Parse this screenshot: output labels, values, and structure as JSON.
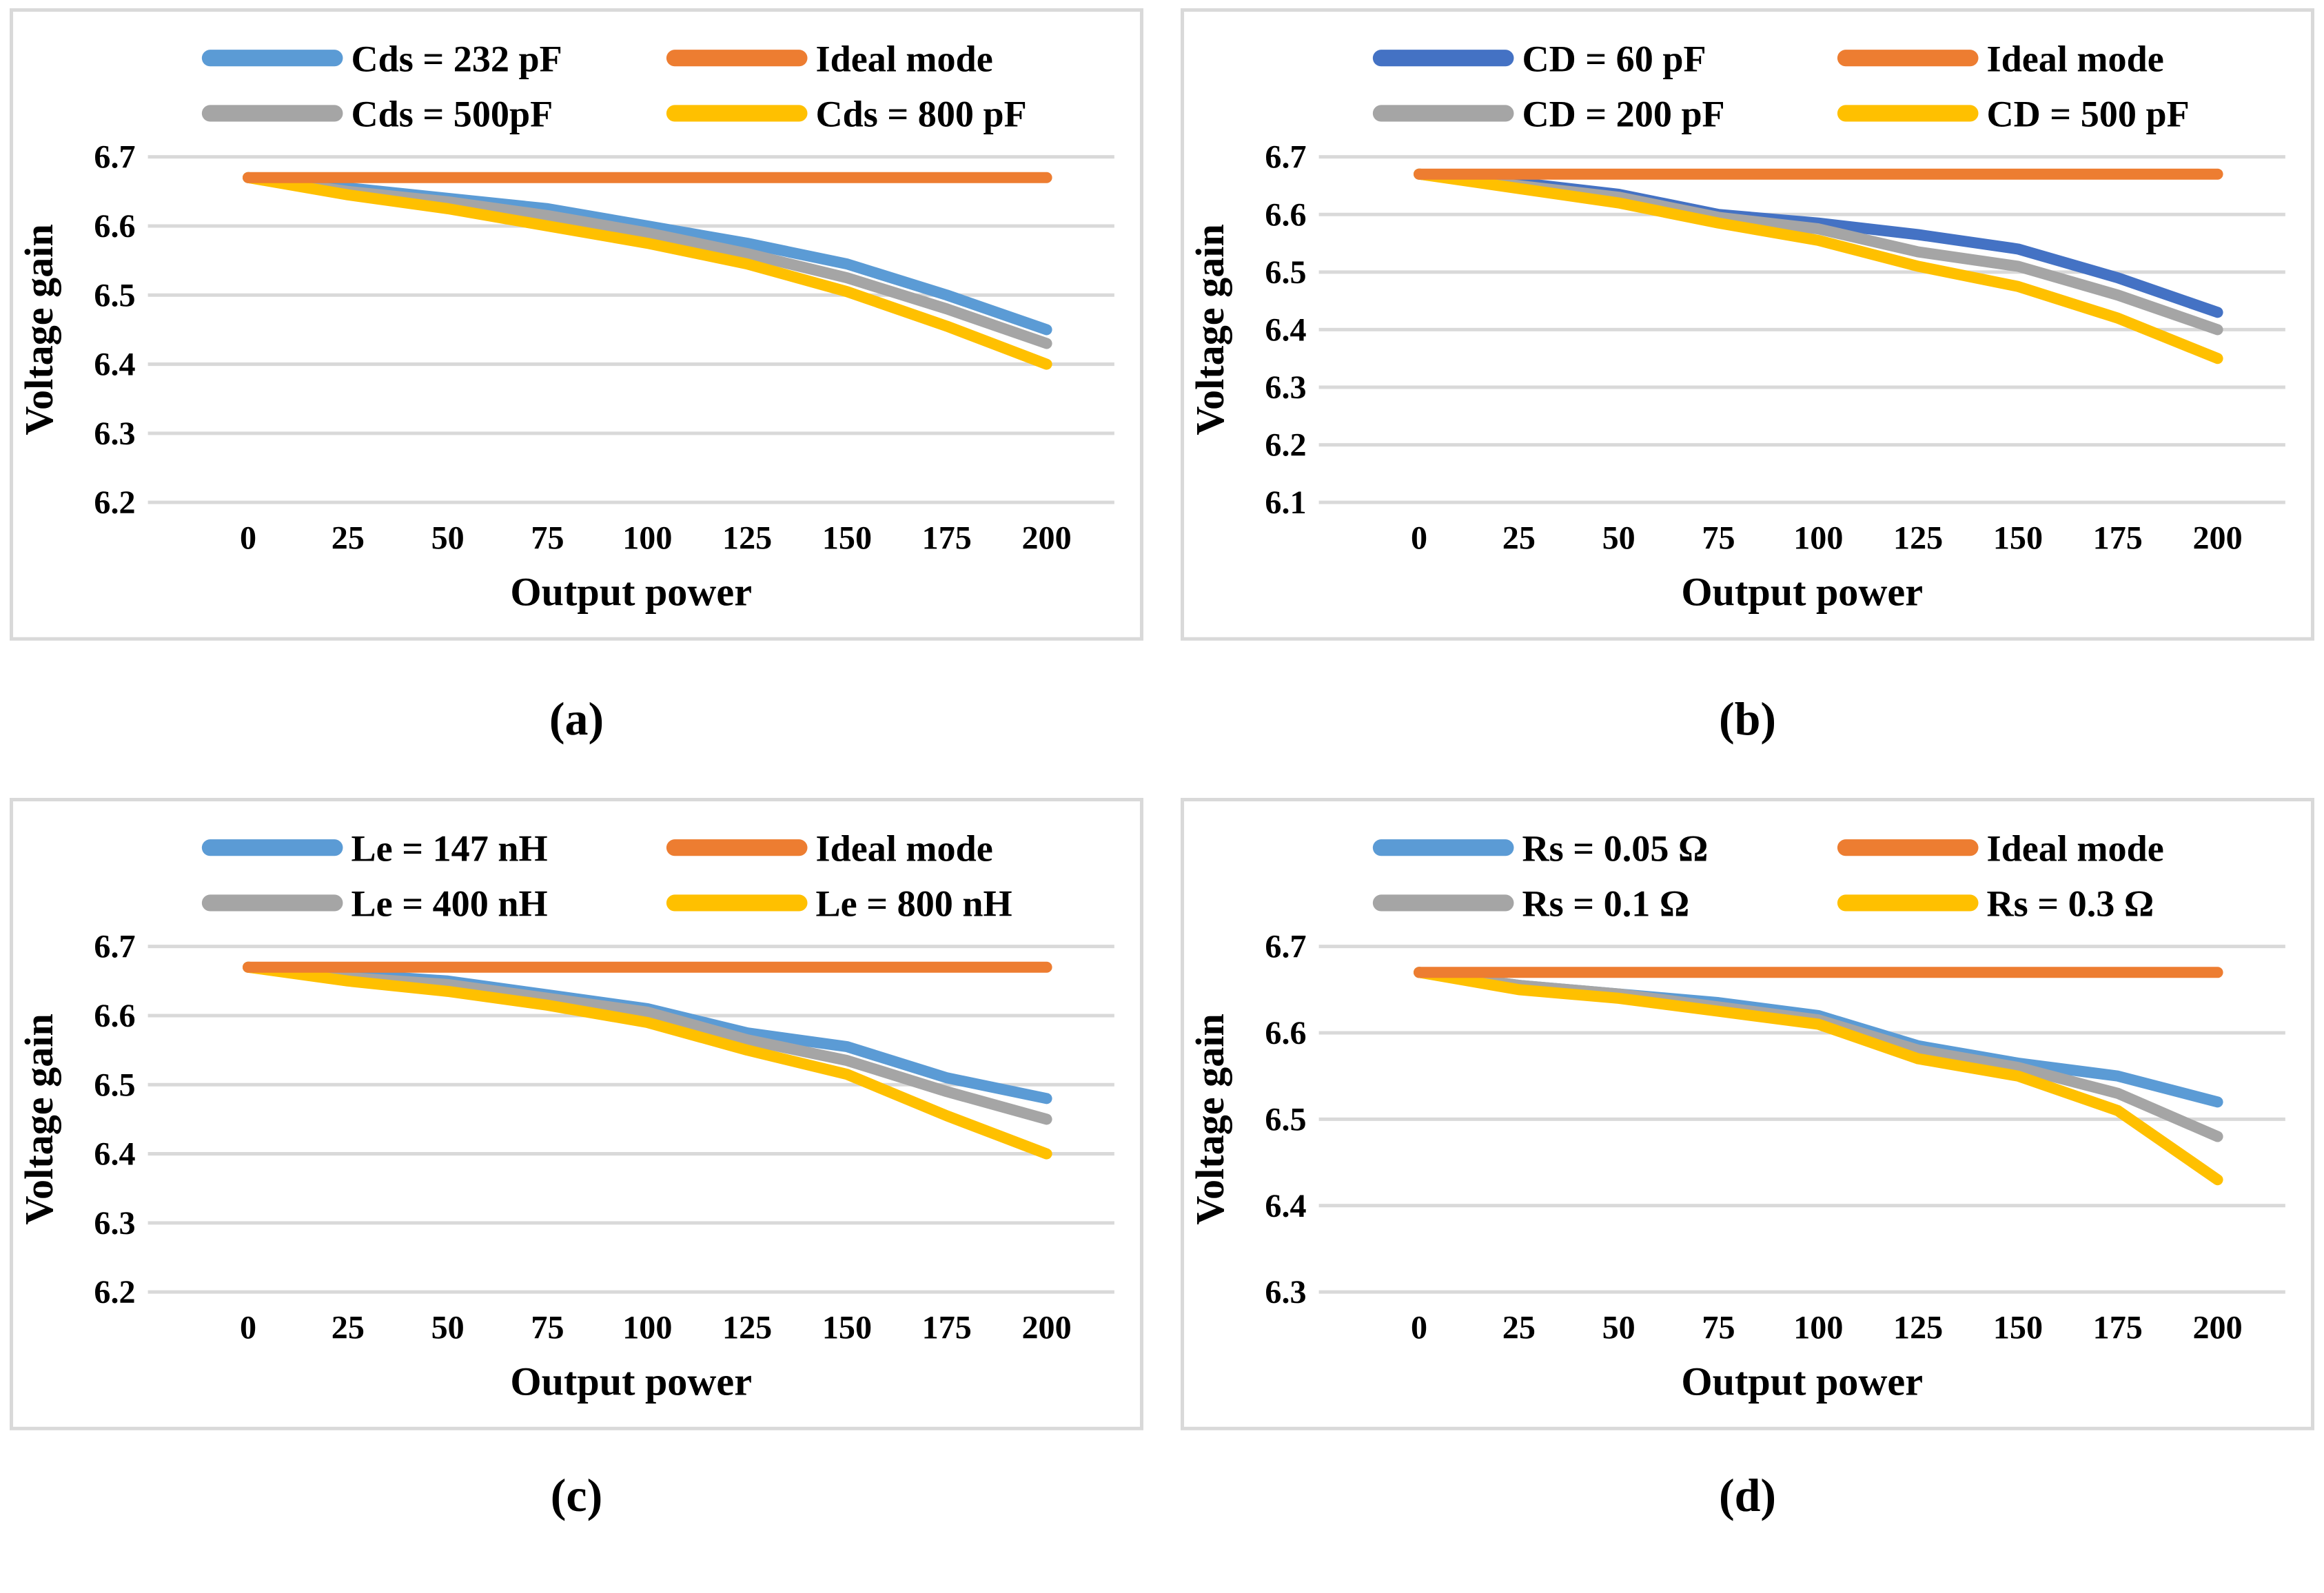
{
  "figure": {
    "x_axis_label": "Output power",
    "y_axis_label": "Voltage gain"
  },
  "colors": {
    "ideal_orange": "#ED7D31",
    "light_blue": "#5B9BD5",
    "dark_blue": "#4472C4",
    "gray": "#A5A5A5",
    "yellow": "#FFC000",
    "gridline": "#D9D9D9",
    "panel_border": "#D9D9D9",
    "text": "#000000"
  },
  "chart_data": [
    {
      "type": "line",
      "caption": "(a)",
      "title": "",
      "xlabel": "Output power",
      "ylabel": "Voltage gain",
      "x": [
        0,
        25,
        50,
        75,
        100,
        125,
        150,
        175,
        200
      ],
      "x_tick_labels": [
        "0",
        "25",
        "50",
        "75",
        "100",
        "125",
        "150",
        "175",
        "200"
      ],
      "y_ticks": [
        "6.7",
        "6.6",
        "6.5",
        "6.4",
        "6.3",
        "6.2"
      ],
      "ylim": [
        6.2,
        6.7
      ],
      "grid": "horizontal",
      "legend_position": "top-inside",
      "series": [
        {
          "name": "Cds = 232 pF",
          "color": "#5B9BD5",
          "values": [
            6.67,
            6.655,
            6.64,
            6.625,
            6.6,
            6.575,
            6.545,
            6.5,
            6.45
          ]
        },
        {
          "name": "Ideal mode",
          "color": "#ED7D31",
          "values": [
            6.67,
            6.67,
            6.67,
            6.67,
            6.67,
            6.67,
            6.67,
            6.67,
            6.67
          ]
        },
        {
          "name": "Cds = 500pF",
          "color": "#A5A5A5",
          "values": [
            6.67,
            6.65,
            6.635,
            6.615,
            6.59,
            6.56,
            6.525,
            6.48,
            6.43
          ]
        },
        {
          "name": "Cds = 800 pF",
          "color": "#FFC000",
          "values": [
            6.67,
            6.645,
            6.625,
            6.6,
            6.575,
            6.545,
            6.505,
            6.455,
            6.4
          ]
        }
      ]
    },
    {
      "type": "line",
      "caption": "(b)",
      "title": "",
      "xlabel": "Output power",
      "ylabel": "Voltage gain",
      "x": [
        0,
        25,
        50,
        75,
        100,
        125,
        150,
        175,
        200
      ],
      "x_tick_labels": [
        "0",
        "25",
        "50",
        "75",
        "100",
        "125",
        "150",
        "175",
        "200"
      ],
      "y_ticks": [
        "6.7",
        "6.6",
        "6.5",
        "6.4",
        "6.3",
        "6.2",
        "6.1"
      ],
      "ylim": [
        6.1,
        6.7
      ],
      "grid": "horizontal",
      "legend_position": "top-inside",
      "series": [
        {
          "name": "CD = 60 pF",
          "color": "#4472C4",
          "values": [
            6.67,
            6.655,
            6.635,
            6.6,
            6.585,
            6.565,
            6.54,
            6.49,
            6.43
          ]
        },
        {
          "name": "Ideal mode",
          "color": "#ED7D31",
          "values": [
            6.67,
            6.67,
            6.67,
            6.67,
            6.67,
            6.67,
            6.67,
            6.67,
            6.67
          ]
        },
        {
          "name": "CD = 200 pF",
          "color": "#A5A5A5",
          "values": [
            6.67,
            6.65,
            6.63,
            6.595,
            6.575,
            6.535,
            6.51,
            6.46,
            6.4
          ]
        },
        {
          "name": "CD = 500 pF",
          "color": "#FFC000",
          "values": [
            6.67,
            6.645,
            6.62,
            6.585,
            6.555,
            6.51,
            6.475,
            6.42,
            6.35
          ]
        }
      ]
    },
    {
      "type": "line",
      "caption": "(c)",
      "title": "",
      "xlabel": "Output power",
      "ylabel": "Voltage gain",
      "x": [
        0,
        25,
        50,
        75,
        100,
        125,
        150,
        175,
        200
      ],
      "x_tick_labels": [
        "0",
        "25",
        "50",
        "75",
        "100",
        "125",
        "150",
        "175",
        "200"
      ],
      "y_ticks": [
        "6.7",
        "6.6",
        "6.5",
        "6.4",
        "6.3",
        "6.2"
      ],
      "ylim": [
        6.2,
        6.7
      ],
      "grid": "horizontal",
      "legend_position": "top-inside",
      "series": [
        {
          "name": "Le = 147 nH",
          "color": "#5B9BD5",
          "values": [
            6.67,
            6.66,
            6.65,
            6.63,
            6.61,
            6.575,
            6.555,
            6.51,
            6.48
          ]
        },
        {
          "name": "Ideal mode",
          "color": "#ED7D31",
          "values": [
            6.67,
            6.67,
            6.67,
            6.67,
            6.67,
            6.67,
            6.67,
            6.67,
            6.67
          ]
        },
        {
          "name": "Le = 400 nH",
          "color": "#A5A5A5",
          "values": [
            6.67,
            6.655,
            6.645,
            6.625,
            6.605,
            6.565,
            6.535,
            6.49,
            6.45
          ]
        },
        {
          "name": "Le = 800 nH",
          "color": "#FFC000",
          "values": [
            6.67,
            6.65,
            6.635,
            6.615,
            6.59,
            6.55,
            6.515,
            6.455,
            6.4
          ]
        }
      ]
    },
    {
      "type": "line",
      "caption": "(d)",
      "title": "",
      "xlabel": "Output power",
      "ylabel": "Voltage gain",
      "x": [
        0,
        25,
        50,
        75,
        100,
        125,
        150,
        175,
        200
      ],
      "x_tick_labels": [
        "0",
        "25",
        "50",
        "75",
        "100",
        "125",
        "150",
        "175",
        "200"
      ],
      "y_ticks": [
        "6.7",
        "6.6",
        "6.5",
        "6.4",
        "6.3"
      ],
      "ylim": [
        6.3,
        6.7
      ],
      "grid": "horizontal",
      "legend_position": "top-inside",
      "series": [
        {
          "name": "Rs = 0.05 Ω",
          "color": "#5B9BD5",
          "values": [
            6.67,
            6.655,
            6.645,
            6.635,
            6.62,
            6.585,
            6.565,
            6.55,
            6.52
          ]
        },
        {
          "name": "Ideal mode",
          "color": "#ED7D31",
          "values": [
            6.67,
            6.67,
            6.67,
            6.67,
            6.67,
            6.67,
            6.67,
            6.67,
            6.67
          ]
        },
        {
          "name": "Rs = 0.1 Ω",
          "color": "#A5A5A5",
          "values": [
            6.67,
            6.655,
            6.645,
            6.63,
            6.615,
            6.58,
            6.56,
            6.53,
            6.48
          ]
        },
        {
          "name": "Rs = 0.3 Ω",
          "color": "#FFC000",
          "values": [
            6.67,
            6.65,
            6.64,
            6.625,
            6.61,
            6.57,
            6.55,
            6.51,
            6.43
          ]
        }
      ]
    }
  ]
}
